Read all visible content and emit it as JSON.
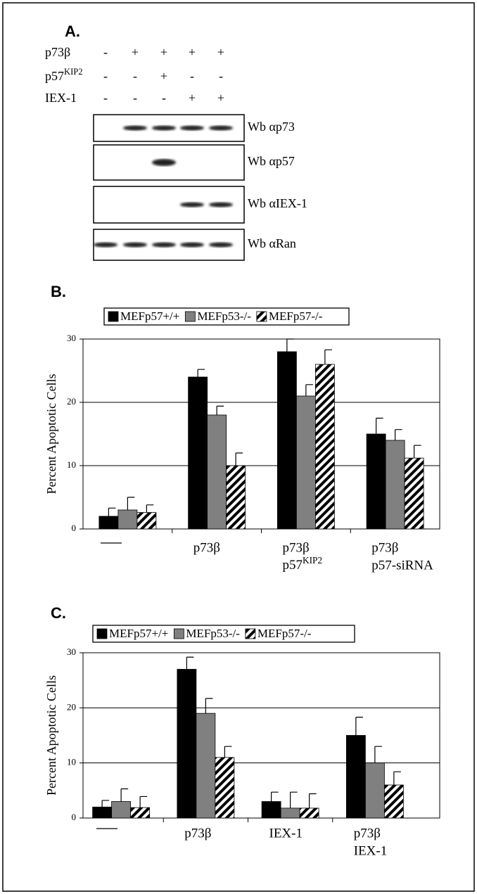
{
  "panel_a": {
    "label": "A.",
    "rows": [
      {
        "label": [
          "p73β"
        ],
        "signs": [
          "-",
          "+",
          "+",
          "+",
          "+"
        ]
      },
      {
        "label": [
          "p57",
          "KIP2"
        ],
        "signs": [
          "-",
          "-",
          "+",
          "-",
          "-"
        ]
      },
      {
        "label": [
          "IEX-1"
        ],
        "signs": [
          "-",
          "-",
          "-",
          "+",
          "+"
        ]
      }
    ],
    "blots": [
      "Wb αp73",
      "Wb αp57",
      "Wb αIEX-1",
      "Wb αRan"
    ]
  },
  "chart_data": [
    {
      "type": "bar",
      "panel_label": "B.",
      "y_label": "Percent Apoptotic Cells",
      "categories": [
        null,
        [
          "p73β"
        ],
        [
          "p73β",
          [
            "p57",
            "KIP2"
          ]
        ],
        [
          "p73β",
          "p57-siRNA"
        ]
      ],
      "series": [
        {
          "name": "MEFp57+/+",
          "color": "#000000",
          "values": [
            2,
            24,
            28,
            15
          ],
          "errors": [
            1.3,
            1.2,
            2,
            2.5
          ]
        },
        {
          "name": "MEFp53-/-",
          "color": "#808080",
          "values": [
            3,
            18,
            21,
            14
          ],
          "errors": [
            2,
            1.4,
            1.8,
            1.7
          ]
        },
        {
          "name": "MEFp57-/-",
          "color": "#000000",
          "hatch": true,
          "values": [
            2.6,
            10,
            26,
            11.2
          ],
          "errors": [
            1.2,
            2,
            2.3,
            2
          ]
        }
      ],
      "ylim": [
        0,
        30
      ],
      "yticks": [
        0,
        10,
        20,
        30
      ],
      "grid": true
    },
    {
      "type": "bar",
      "panel_label": "C.",
      "y_label": "Percent Apoptotic Cells",
      "categories": [
        null,
        [
          "p73β"
        ],
        [
          "IEX-1"
        ],
        [
          "p73β",
          "IEX-1"
        ]
      ],
      "series": [
        {
          "name": "MEFp57+/+",
          "color": "#000000",
          "values": [
            2,
            27,
            3,
            15
          ],
          "errors": [
            1.2,
            2.2,
            1.7,
            3.3
          ]
        },
        {
          "name": "MEFp53-/-",
          "color": "#808080",
          "values": [
            3,
            19,
            1.8,
            10
          ],
          "errors": [
            2.3,
            2.7,
            2.9,
            3
          ]
        },
        {
          "name": "MEFp57-/-",
          "color": "#000000",
          "hatch": true,
          "values": [
            1.9,
            11,
            1.8,
            6
          ],
          "errors": [
            2,
            2,
            2.6,
            2.4
          ]
        }
      ],
      "ylim": [
        0,
        30
      ],
      "yticks": [
        0,
        10,
        20,
        30
      ],
      "grid": true
    }
  ]
}
